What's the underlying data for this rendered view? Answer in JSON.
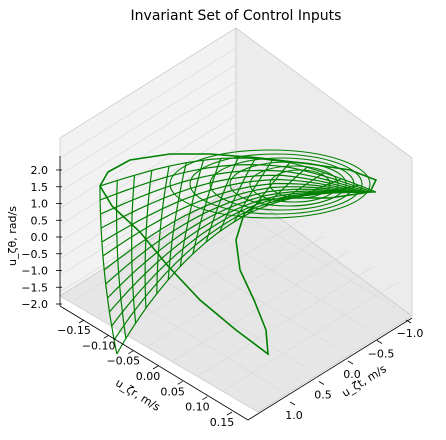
{
  "chart_data": {
    "type": "surface3d",
    "title": "Invariant Set of Control Inputs",
    "x_axis": {
      "label": "u_ζr, m/s",
      "ticks": [
        -0.15,
        -0.1,
        -0.05,
        0.0,
        0.05,
        0.1,
        0.15
      ],
      "tick_labels": [
        "−0.15",
        "−0.10",
        "−0.05",
        "0.00",
        "0.05",
        "0.10",
        "0.15"
      ],
      "range": [
        -0.17,
        0.17
      ]
    },
    "y_axis": {
      "label": "u_ζt, m/s",
      "ticks": [
        1.0,
        0.5,
        0.0,
        -0.5,
        -1.0
      ],
      "tick_labels": [
        "1.0",
        "0.5",
        "0.0",
        "−0.5",
        "−1.0"
      ],
      "range": [
        -1.3,
        1.3
      ]
    },
    "z_axis": {
      "label": "u_ζθ, rad/s",
      "ticks": [
        2.0,
        1.5,
        1.0,
        0.5,
        0.0,
        -0.5,
        -1.0,
        -1.5,
        -2.0
      ],
      "tick_labels": [
        "2.0",
        "1.5",
        "1.0",
        "0.5",
        "0.0",
        "−0.5",
        "−1.0",
        "−1.5",
        "−2.0"
      ],
      "range": [
        -2.2,
        2.2
      ]
    },
    "grid": true,
    "wireframe_color": "#008000",
    "pane_color": "#f2f2f2",
    "grid_color": "#d9d9d9"
  }
}
